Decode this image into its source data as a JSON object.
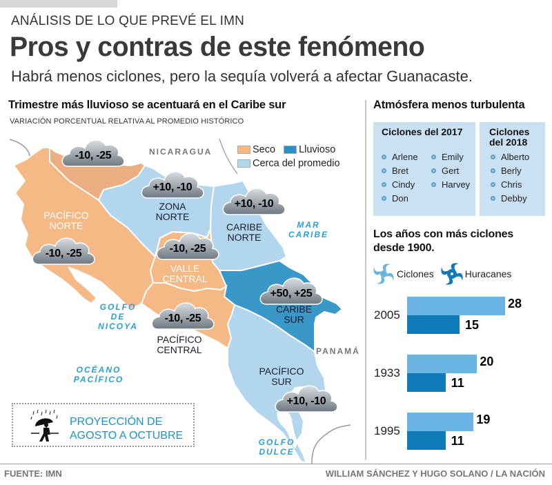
{
  "header": {
    "kicker": "ANÁLISIS DE LO QUE PREVÉ EL IMN",
    "title": "Pros y contras de este fenómeno",
    "dek": "Habrá menos ciclones, pero la sequía volverá a afectar Guanacaste."
  },
  "map_section": {
    "title": "Trimestre más lluvioso se acentuará en el Caribe sur",
    "subtitle": "VARIACIÓN PORCENTUAL RELATIVA AL PROMEDIO HISTÓRICO",
    "legend": [
      {
        "label": "Seco",
        "color": "#f5b986"
      },
      {
        "label": "Lluvioso",
        "color": "#3a98c9"
      },
      {
        "label": "Cerca del promedio",
        "color": "#b3d6ef"
      }
    ],
    "countries": {
      "north": "NICARAGUA",
      "south": "PANAMÁ"
    },
    "seas": {
      "caribbean": [
        "MAR",
        "CARIBE"
      ],
      "nicoya": [
        "GOLFO",
        "DE",
        "NICOYA"
      ],
      "pacific": [
        "OCÉANO",
        "PACÍFICO"
      ],
      "dulce": [
        "GOLFO",
        "DULCE"
      ]
    },
    "regions": [
      {
        "id": "pacifico-norte",
        "name": [
          "PACÍFICO",
          "NORTE"
        ],
        "category": "Seco",
        "range": "-10, -25"
      },
      {
        "id": "norte-guanacaste",
        "name": [],
        "category": "Seco",
        "range": "-10, -25"
      },
      {
        "id": "zona-norte",
        "name": [
          "ZONA",
          "NORTE"
        ],
        "category": "Cerca del promedio",
        "range": "+10, -10"
      },
      {
        "id": "caribe-norte",
        "name": [
          "CARIBE",
          "NORTE"
        ],
        "category": "Cerca del promedio",
        "range": "+10, -10"
      },
      {
        "id": "valle-central",
        "name": [
          "VALLE",
          "CENTRAL"
        ],
        "category": "Seco",
        "range": "-10, -25"
      },
      {
        "id": "caribe-sur",
        "name": [
          "CARIBE",
          "SUR"
        ],
        "category": "Lluvioso",
        "range": "+50, +25"
      },
      {
        "id": "pacifico-central",
        "name": [
          "PACÍFICO",
          "CENTRAL"
        ],
        "category": "Seco",
        "range": "-10, -25"
      },
      {
        "id": "pacifico-sur",
        "name": [
          "PACÍFICO",
          "SUR"
        ],
        "category": "Cerca del promedio",
        "range": "+10, -10"
      }
    ],
    "projection": [
      "PROYECCIÓN DE",
      "AGOSTO A OCTUBRE"
    ]
  },
  "right_section": {
    "title": "Atmósfera menos turbulenta",
    "cyclones_2017": {
      "title": "Ciclones del 2017",
      "col1": [
        "Arlene",
        "Bret",
        "Cindy",
        "Don"
      ],
      "col2": [
        "Emily",
        "Gert",
        "Harvey"
      ]
    },
    "cyclones_2018": {
      "title": [
        "Ciclones",
        "del 2018"
      ],
      "names": [
        "Alberto",
        "Berly",
        "Chris",
        "Debby"
      ]
    },
    "years_title": [
      "Los  años con más ciclones",
      "desde 1900."
    ]
  },
  "chart_data": {
    "type": "bar",
    "orientation": "horizontal",
    "title": "Los años con más ciclones desde 1900.",
    "categories": [
      "2005",
      "1933",
      "1995"
    ],
    "series": [
      {
        "name": "Ciclones",
        "color": "#6ab4e3",
        "values": [
          28,
          20,
          19
        ]
      },
      {
        "name": "Huracanes",
        "color": "#0e7ab8",
        "values": [
          15,
          11,
          11
        ]
      }
    ],
    "legend": "top",
    "xlabel": "",
    "ylabel": "",
    "grid": false
  },
  "footer": {
    "source": "FUENTE: IMN",
    "credit": "WILLIAM SÁNCHEZ Y HUGO SOLANO / LA NACIÓN"
  }
}
